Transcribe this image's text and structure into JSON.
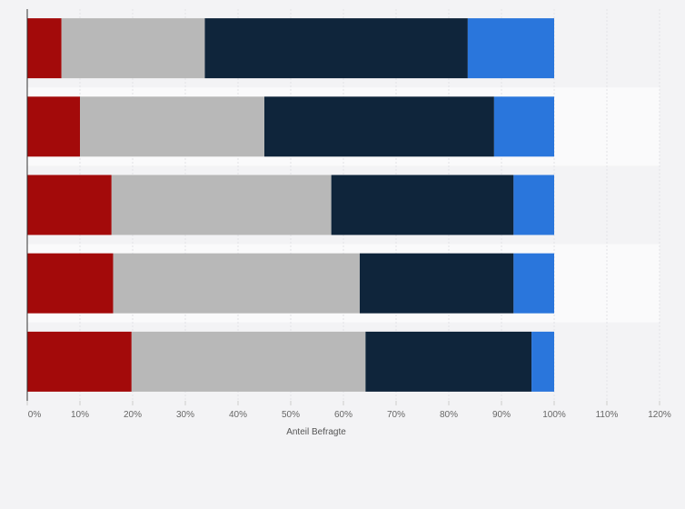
{
  "chart_data": {
    "type": "bar",
    "orientation": "horizontal",
    "stacked": true,
    "title": "",
    "xlabel": "Anteil Befragte",
    "ylabel": "",
    "xlim": [
      0,
      120
    ],
    "x_ticks": [
      "0%",
      "10%",
      "20%",
      "30%",
      "40%",
      "50%",
      "60%",
      "70%",
      "80%",
      "90%",
      "100%",
      "110%",
      "120%"
    ],
    "categories": [
      "",
      "",
      "",
      "",
      ""
    ],
    "series": [
      {
        "color": "#a30a0a",
        "values": [
          6.5,
          10,
          16,
          16.3,
          19.8
        ]
      },
      {
        "color": "#b8b8b8",
        "values": [
          27.2,
          35,
          41.7,
          46.8,
          44.4
        ]
      },
      {
        "color": "#0f253b",
        "values": [
          49.9,
          43.6,
          34.6,
          29.2,
          31.5
        ]
      },
      {
        "color": "#2a76dc",
        "values": [
          16.4,
          11.4,
          7.7,
          7.7,
          4.3
        ]
      }
    ],
    "grid": true,
    "legend": "none"
  }
}
